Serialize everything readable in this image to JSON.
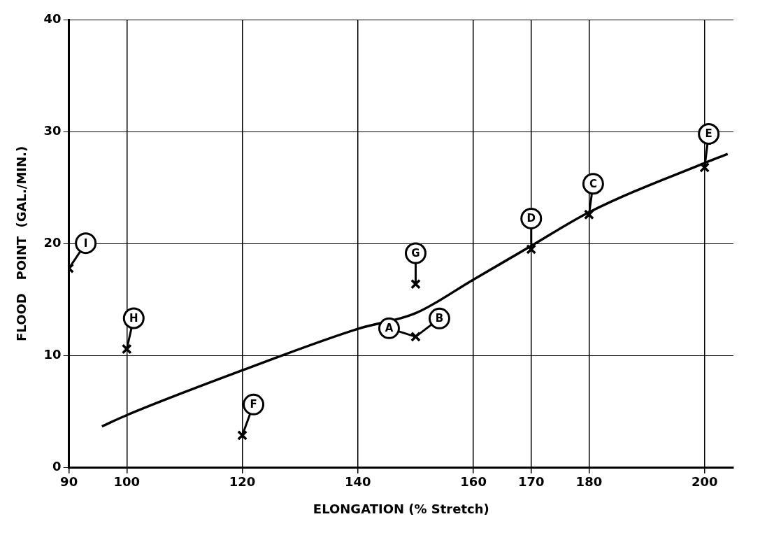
{
  "chart_data": {
    "type": "scatter",
    "xlabel": "ELONGATION (% Stretch)",
    "ylabel": "FLOOD   POINT  (GAL./MIN.)",
    "xlim": [
      90,
      205
    ],
    "xticks": [
      90,
      100,
      120,
      140,
      160,
      170,
      180,
      200
    ],
    "ylim": [
      0,
      40
    ],
    "yticks": [
      0,
      10,
      20,
      30,
      40
    ],
    "grid": true,
    "legend": false,
    "series": [
      {
        "type": "scatter",
        "color": "#000000",
        "marker": "cross",
        "x": [
          90,
          100,
          120,
          150,
          150,
          170,
          180,
          200
        ],
        "values": [
          17.8,
          10.6,
          2.9,
          16.4,
          11.7,
          19.5,
          22.6,
          26.8
        ]
      },
      {
        "type": "line",
        "color": "#000000",
        "marker": "none",
        "line_style": "solid",
        "x": [
          95.7,
          100,
          120,
          140,
          150,
          160,
          170,
          180,
          200,
          204
        ],
        "values": [
          3.7,
          4.7,
          8.7,
          12.4,
          13.8,
          16.8,
          19.8,
          22.8,
          27.2,
          28.0
        ]
      }
    ],
    "annotations": [
      {
        "text": "I",
        "x": 90,
        "y": 17.8
      },
      {
        "text": "H",
        "x": 100,
        "y": 10.6
      },
      {
        "text": "F",
        "x": 120,
        "y": 2.9
      },
      {
        "text": "G",
        "x": 150,
        "y": 16.4
      },
      {
        "text": "A",
        "x": 150,
        "y": 11.7
      },
      {
        "text": "B",
        "x": 150,
        "y": 11.7
      },
      {
        "text": "D",
        "x": 170,
        "y": 19.5
      },
      {
        "text": "C",
        "x": 180,
        "y": 22.6
      },
      {
        "text": "E",
        "x": 200,
        "y": 26.8
      }
    ]
  }
}
